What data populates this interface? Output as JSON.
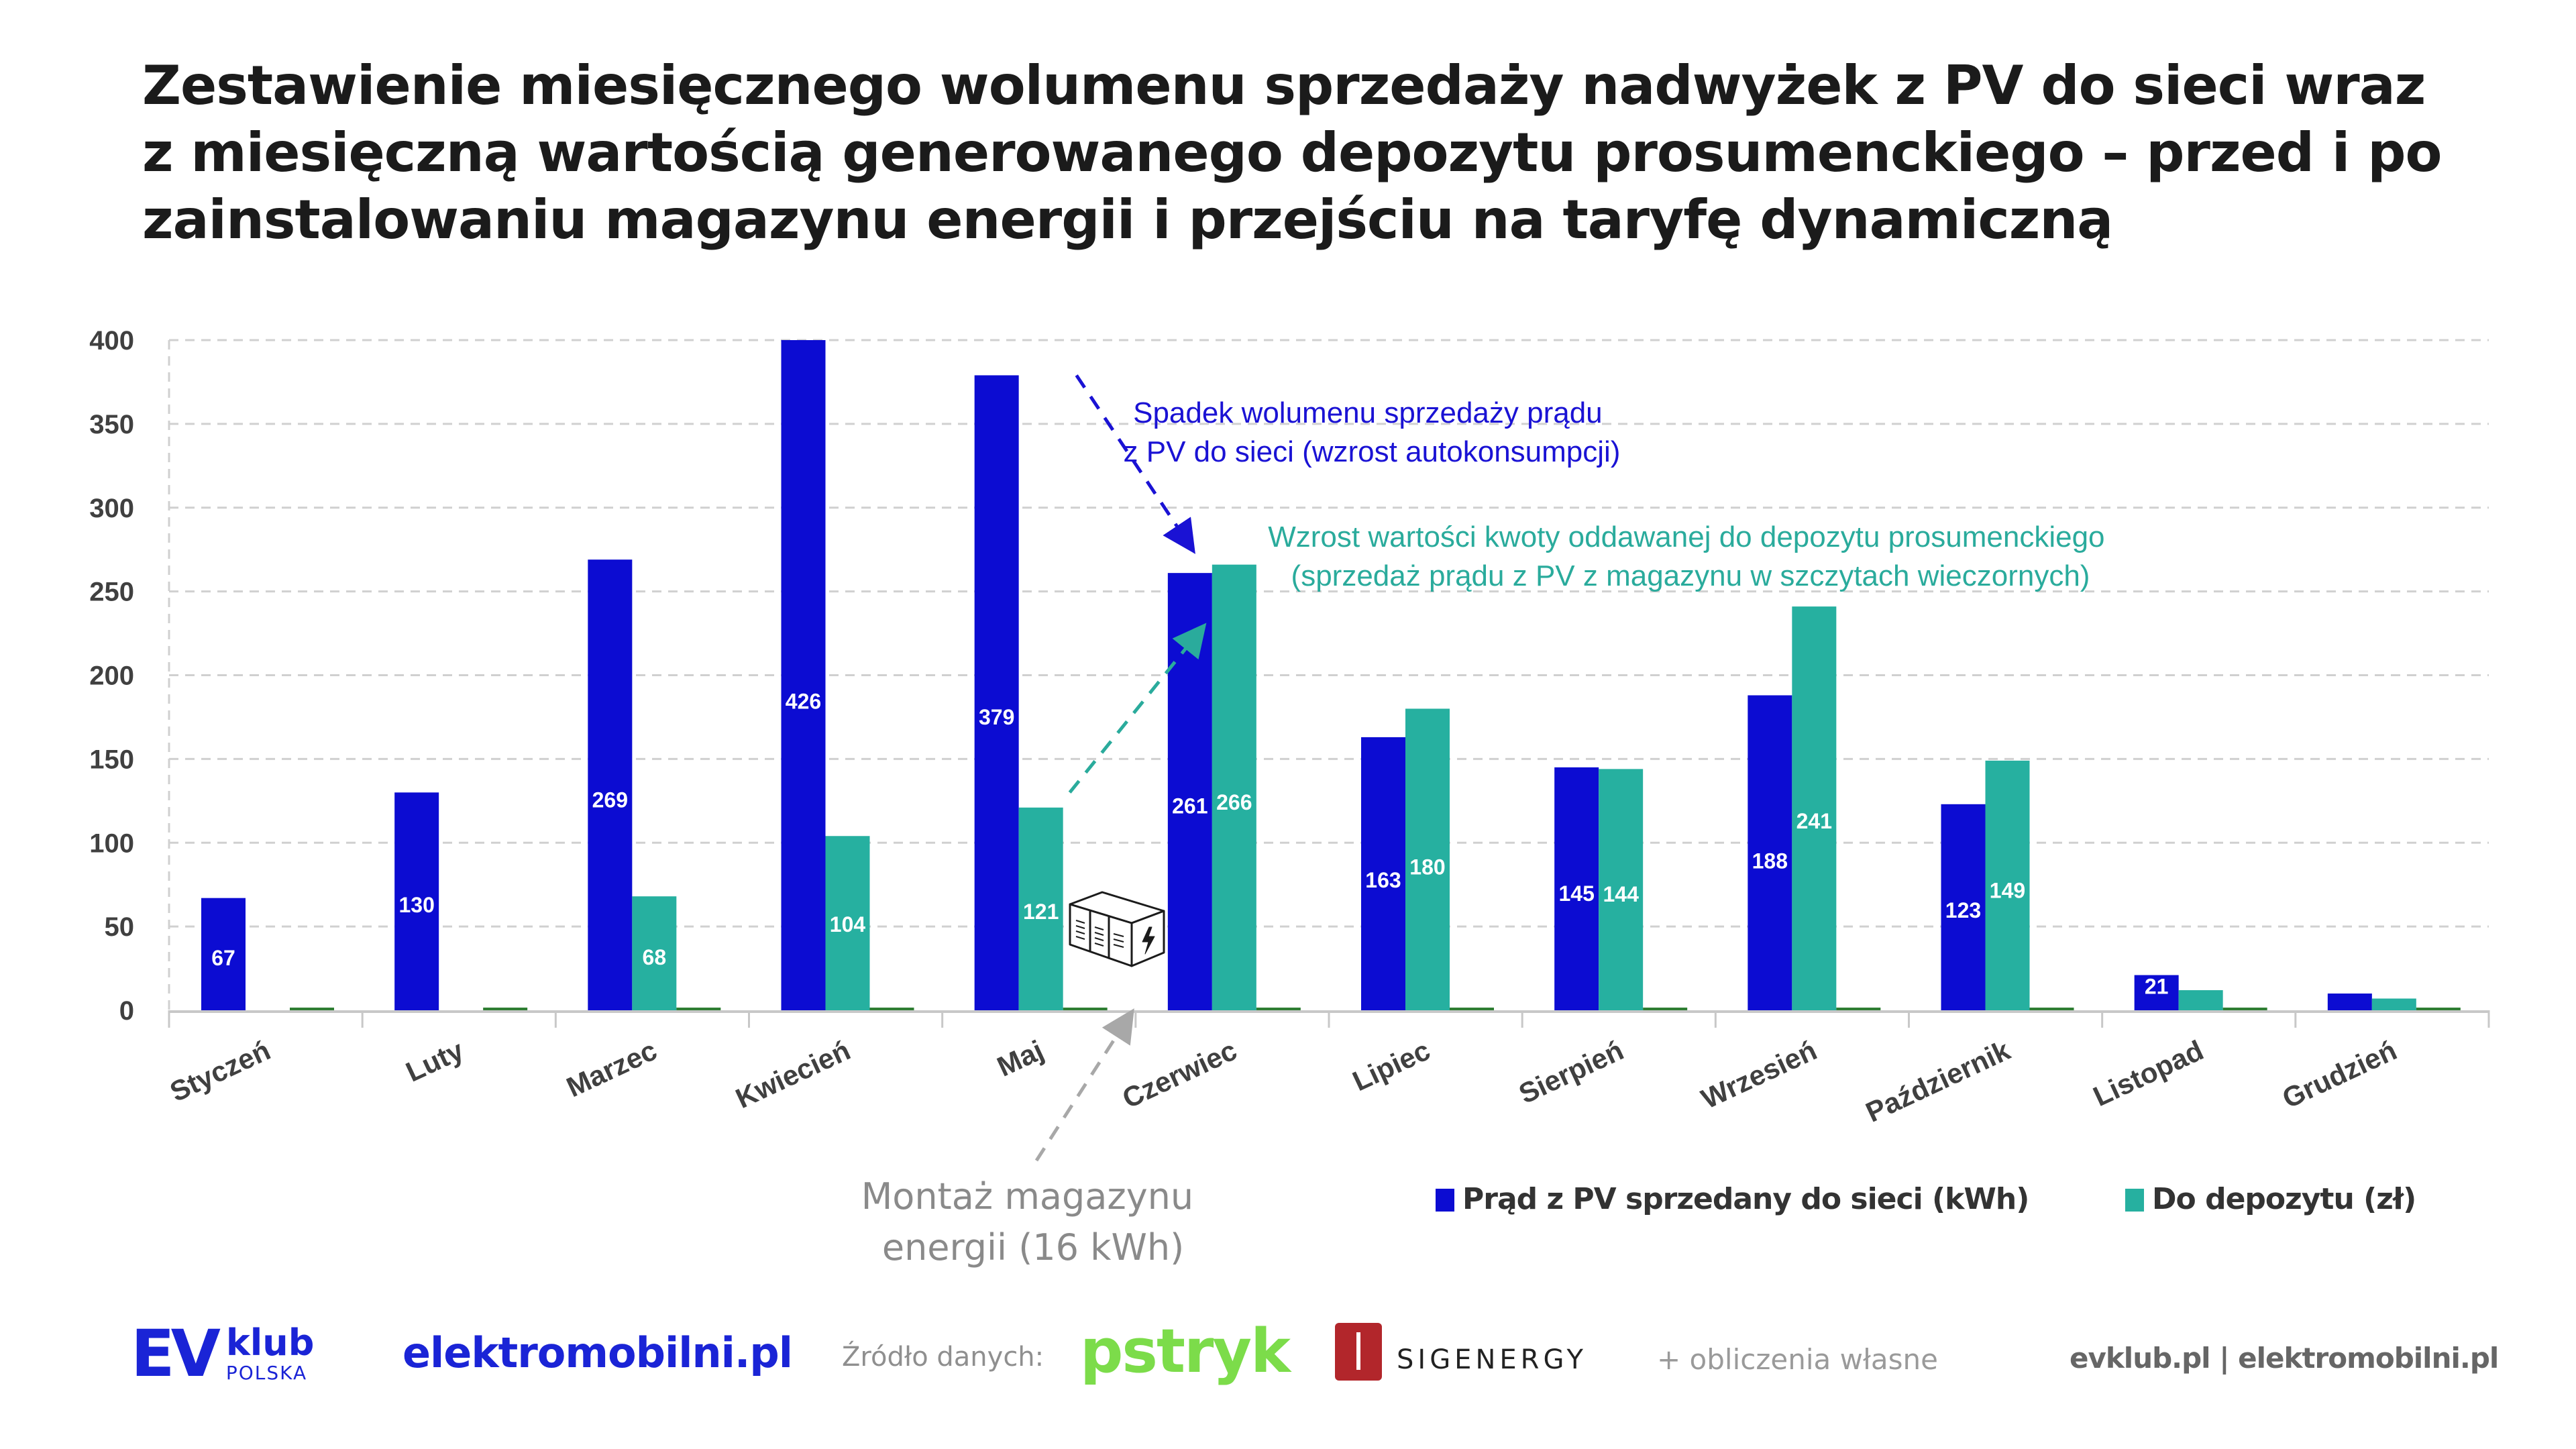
{
  "title": {
    "lines": [
      "Zestawienie miesięcznego wolumenu sprzedaży nadwyżek z PV do sieci wraz",
      "z miesięczną wartością generowanego depozytu prosumenckiego – przed i po",
      "zainstalowaniu magazynu energii i przejściu na taryfę dynamiczną"
    ]
  },
  "colors": {
    "series_pv": "#0c0cd2",
    "series_deposit": "#26b0a0",
    "series_zero": "#2e7d32",
    "grid": "#d0d0d0",
    "axis": "#c8c8c8",
    "annotation_blue": "#1a12d4",
    "annotation_teal": "#2aab9c",
    "annotation_grey": "#9a9a9a"
  },
  "chart_data": {
    "type": "bar",
    "title": "Zestawienie miesięcznego wolumenu sprzedaży nadwyżek z PV do sieci wraz z miesięczną wartością generowanego depozytu prosumenckiego – przed i po zainstalowaniu magazynu energii i przejściu na taryfę dynamiczną",
    "xlabel": "",
    "ylabel": "",
    "ylim": [
      0,
      400
    ],
    "yticks": [
      0,
      50,
      100,
      150,
      200,
      250,
      300,
      350,
      400
    ],
    "grid": true,
    "legend_position": "bottom-right",
    "categories": [
      "Styczeń",
      "Luty",
      "Marzec",
      "Kwiecień",
      "Maj",
      "Czerwiec",
      "Lipiec",
      "Sierpień",
      "Wrzesień",
      "Październik",
      "Listopad",
      "Grudzień"
    ],
    "series": [
      {
        "name": "Prąd z PV sprzedany do sieci (kWh)",
        "values": [
          67,
          130,
          269,
          426,
          379,
          261,
          163,
          145,
          188,
          123,
          21,
          10
        ],
        "labels": [
          "67",
          "130",
          "269",
          "426",
          "379",
          "261",
          "163",
          "145",
          "188",
          "123",
          "21",
          ""
        ]
      },
      {
        "name": "Do depozytu (zł)",
        "values": [
          0,
          0,
          68,
          104,
          121,
          266,
          180,
          144,
          241,
          149,
          12,
          7
        ],
        "labels": [
          "",
          "",
          "68",
          "104",
          "121",
          "266",
          "180",
          "144",
          "241",
          "149",
          "",
          ""
        ]
      },
      {
        "name": "",
        "values": [
          0,
          0,
          0,
          0,
          0,
          0,
          0,
          0,
          0,
          0,
          0,
          0
        ],
        "labels": [
          "",
          "",
          "",
          "",
          "",
          "",
          "",
          "",
          "",
          "",
          "",
          ""
        ]
      }
    ],
    "annotations": [
      {
        "id": "pv-drop",
        "lines": [
          "Spadek wolumenu sprzedaży prądu",
          "z PV do sieci (wzrost autokonsumpcji)"
        ],
        "from": {
          "category": "Maj",
          "value": 379
        },
        "to": {
          "category": "Czerwiec",
          "value": 275
        },
        "style": "dashed-arrow"
      },
      {
        "id": "deposit-rise",
        "lines": [
          "Wzrost wartości kwoty oddawanej do depozytu prosumenckiego",
          "(sprzedaż prądu z PV z magazynu w szczytach wieczornych)"
        ],
        "from": {
          "category": "Maj",
          "value": 130
        },
        "to": {
          "category": "Czerwiec",
          "value": 225
        },
        "style": "dashed-arrow"
      },
      {
        "id": "storage-install",
        "lines": [
          "Montaż magazynu",
          "energii (16 kWh)"
        ],
        "points_to": "between Maj and Czerwiec",
        "icon": "battery-storage-container-icon",
        "style": "dashed-arrow"
      }
    ]
  },
  "legend": [
    {
      "label": "Prąd z PV sprzedany do sieci (kWh)",
      "color": "#0c0cd2"
    },
    {
      "label": "Do depozytu (zł)",
      "color": "#26b0a0"
    }
  ],
  "footer": {
    "evklub_mark": "EV",
    "evklub_word": "klub",
    "evklub_sub": "POLSKA",
    "elektromobilni": "elektromobilni.pl",
    "source_label": "Źródło danych:",
    "pstryk": "pstryk",
    "sigenergy": "SIGENERGY",
    "own_calc": "+ obliczenia własne",
    "urls": "evklub.pl | elektromobilni.pl"
  }
}
